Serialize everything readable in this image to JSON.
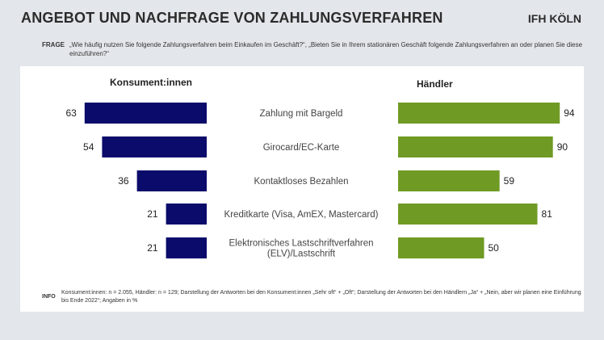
{
  "header": {
    "title": "ANGEBOT UND NACHFRAGE VON ZAHLUNGSVERFAHREN",
    "brand": "IFH KÖLN"
  },
  "question": {
    "label": "FRAGE",
    "text": "„Wie häufig nutzen Sie folgende Zahlungsverfahren beim Einkaufen im Geschäft?“, „Bieten Sie in Ihrem stationären Geschäft folgende Zahlungsverfahren an oder planen Sie diese einzuführen?“"
  },
  "info": {
    "label": "INFO",
    "text": "Konsument:innen: n = 2.055, Händler: n = 129; Darstellung der Antworten bei den Konsument:innen „Sehr oft“ + „Oft“; Darstellung der Antworten bei den Händlern „Ja“ + „Nein, aber wir planen eine Einführung bis Ende 2022“; Angaben in %"
  },
  "chart_data": {
    "type": "bar",
    "orientation": "horizontal",
    "categories": [
      "Zahlung mit Bargeld",
      "Girocard/EC-Karte",
      "Kontaktloses Bezahlen",
      "Kreditkarte (Visa, AmEX, Mastercard)",
      "Elektronisches Lastschriftverfahren (ELV)/Lastschrift"
    ],
    "series": [
      {
        "name": "Konsument:innen",
        "values": [
          63,
          54,
          36,
          21,
          21
        ],
        "color": "#0b0b6b"
      },
      {
        "name": "Händler",
        "values": [
          94,
          90,
          59,
          81,
          50
        ],
        "color": "#6f9a24"
      }
    ],
    "unit": "%"
  }
}
